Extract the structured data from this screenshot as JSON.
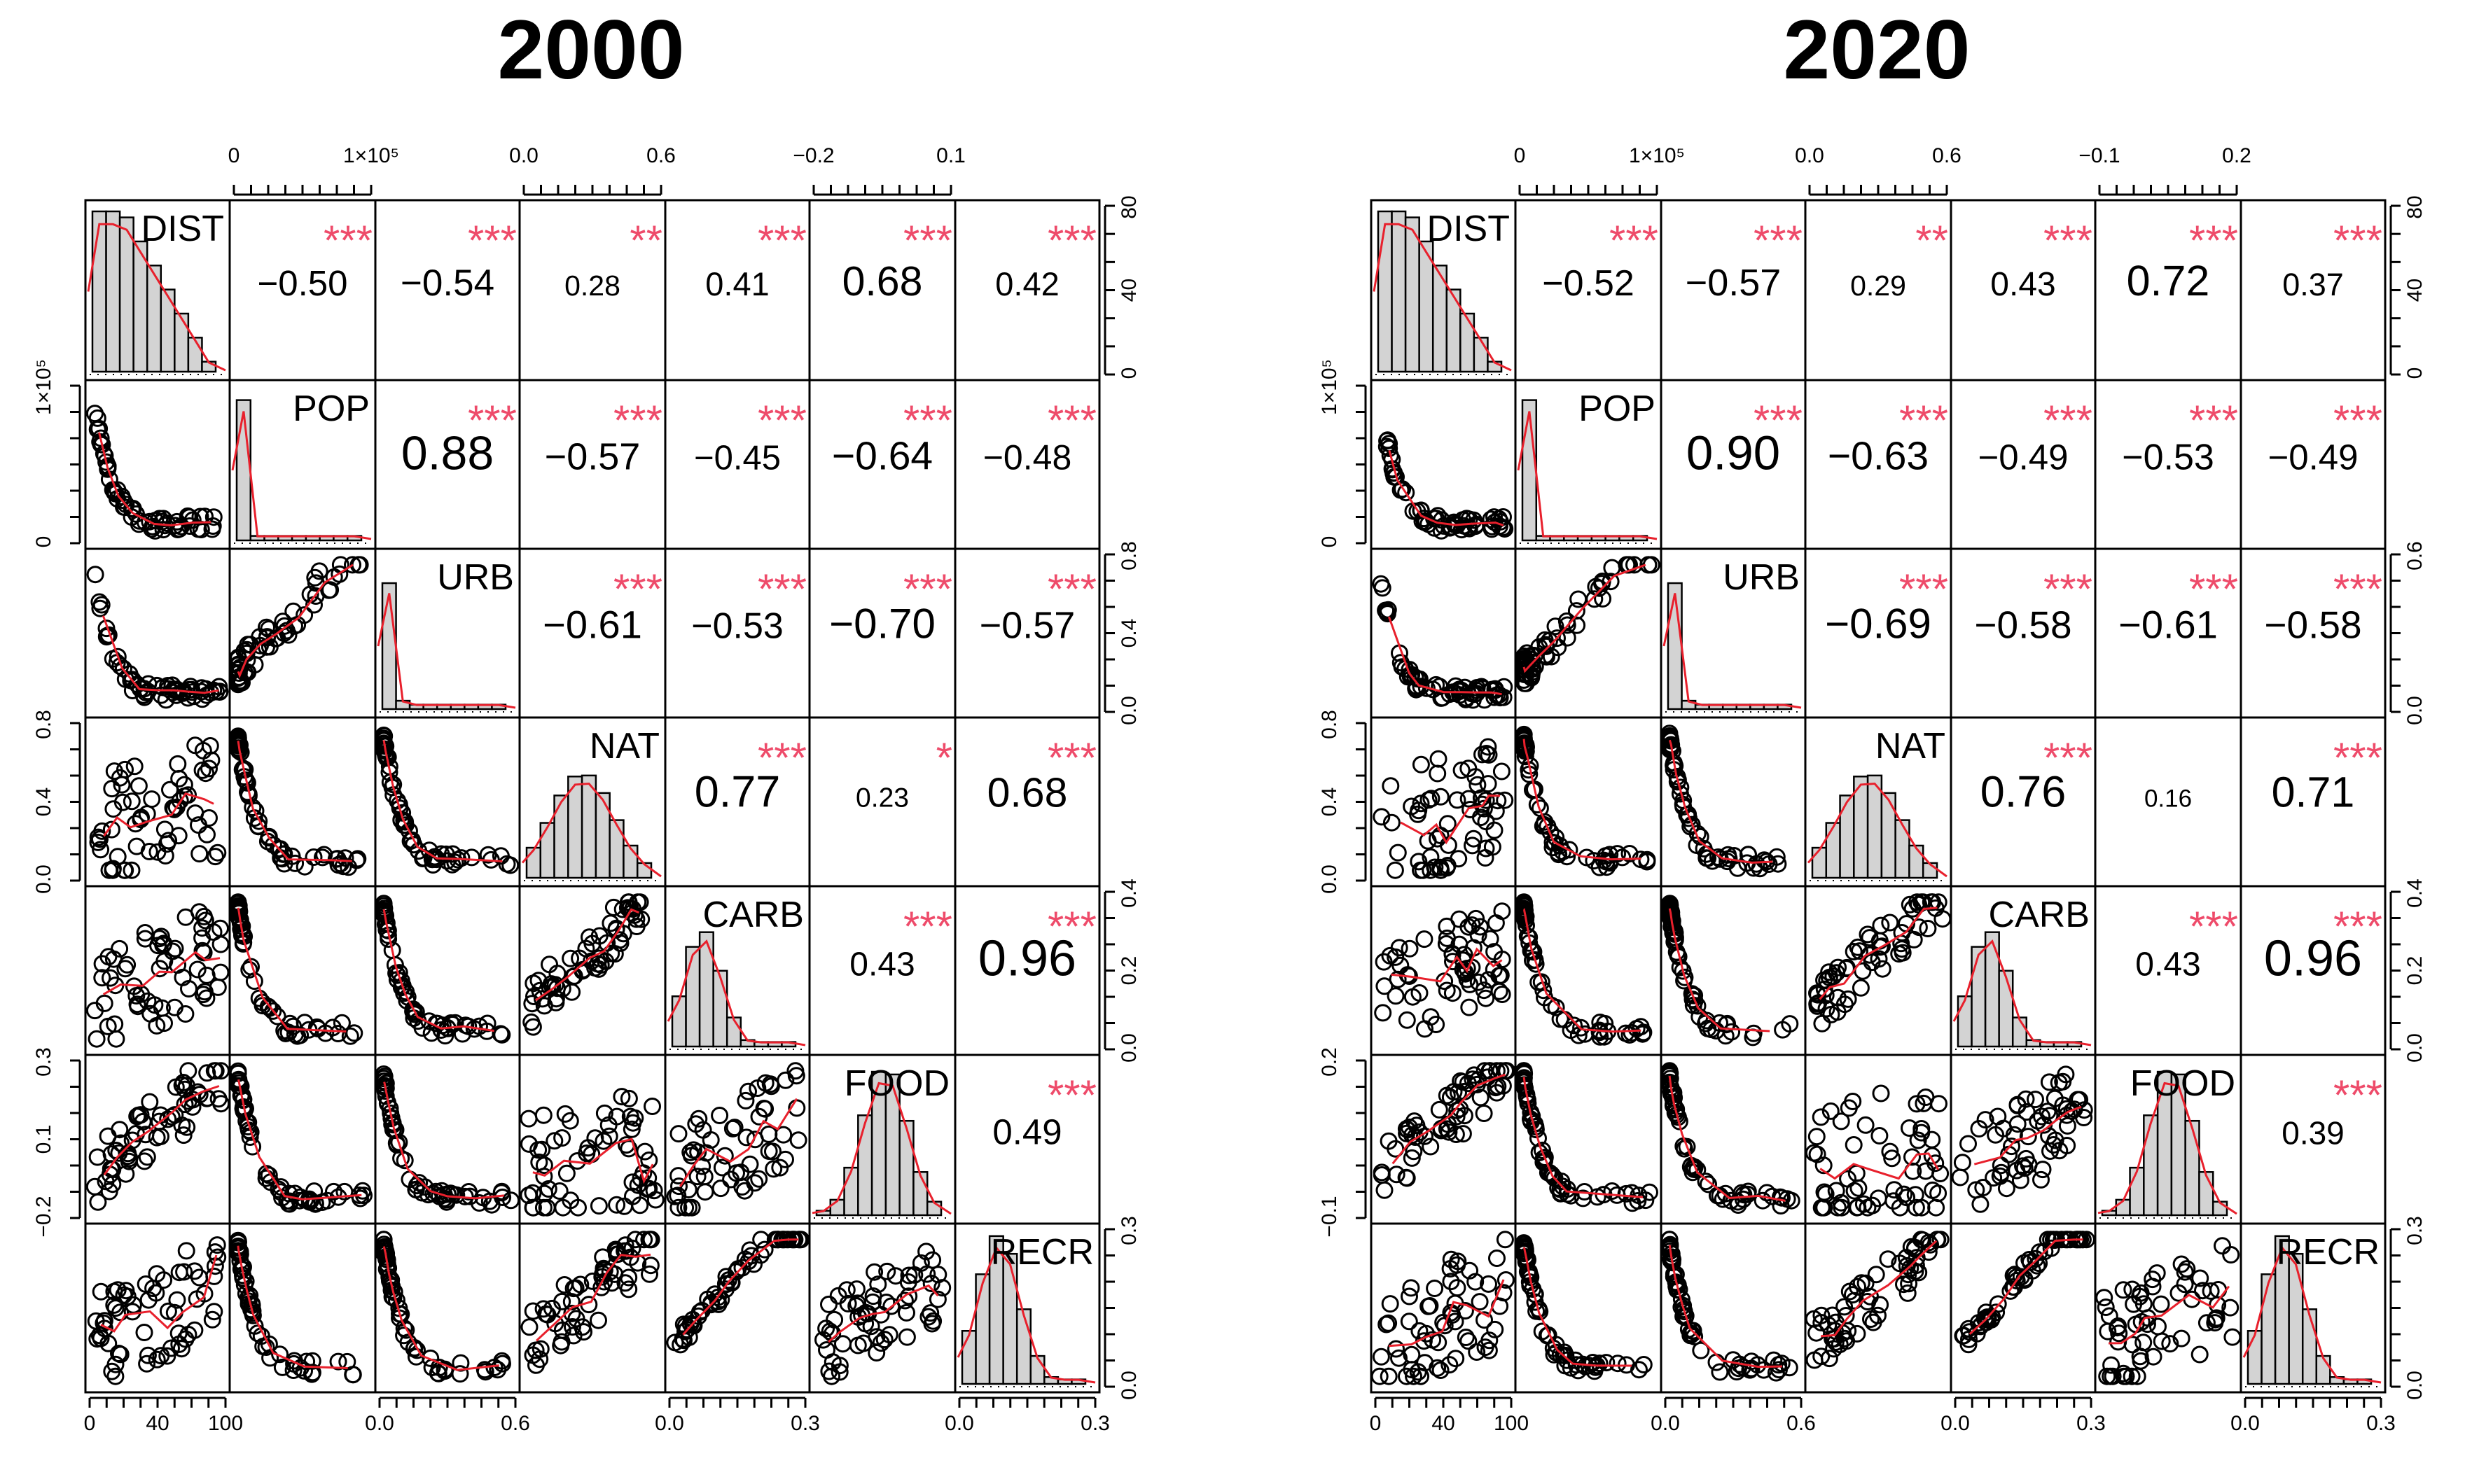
{
  "variables": [
    "DIST",
    "POP",
    "URB",
    "NAT",
    "CARB",
    "FOOD",
    "RECR"
  ],
  "accent": "#e8202c",
  "star_color": "#ee4b6a",
  "chart_data": [
    {
      "type": "scatter",
      "title": "2000",
      "plot_kind": "scatterplot-matrix",
      "diagonal_labels": [
        "DIST",
        "POP",
        "URB",
        "NAT",
        "CARB",
        "FOOD",
        "RECR"
      ],
      "correlations": {
        "DIST": {
          "POP": "−0.50",
          "URB": "−0.54",
          "NAT": "0.28",
          "CARB": "0.41",
          "FOOD": "0.68",
          "RECR": "0.42"
        },
        "POP": {
          "URB": "0.88",
          "NAT": "−0.57",
          "CARB": "−0.45",
          "FOOD": "−0.64",
          "RECR": "−0.48"
        },
        "URB": {
          "NAT": "−0.61",
          "CARB": "−0.53",
          "FOOD": "−0.70",
          "RECR": "−0.57"
        },
        "NAT": {
          "CARB": "0.77",
          "FOOD": "0.23",
          "RECR": "0.68"
        },
        "CARB": {
          "FOOD": "0.43",
          "RECR": "0.96"
        },
        "FOOD": {
          "RECR": "0.49"
        }
      },
      "significance": {
        "DIST": {
          "POP": "***",
          "URB": "***",
          "NAT": "**",
          "CARB": "***",
          "FOOD": "***",
          "RECR": "***"
        },
        "POP": {
          "URB": "***",
          "NAT": "***",
          "CARB": "***",
          "FOOD": "***",
          "RECR": "***"
        },
        "URB": {
          "NAT": "***",
          "CARB": "***",
          "FOOD": "***",
          "RECR": "***"
        },
        "NAT": {
          "CARB": "***",
          "FOOD": "*",
          "RECR": "***"
        },
        "CARB": {
          "FOOD": "***",
          "RECR": "***"
        },
        "FOOD": {
          "RECR": "***"
        }
      },
      "axes": {
        "top_POP": [
          "0",
          "1×10⁵"
        ],
        "top_NAT": [
          "0.0",
          "0.6"
        ],
        "top_FOOD": [
          "−0.2",
          "0.1"
        ],
        "right_DIST": [
          "0",
          "40",
          "80"
        ],
        "right_URB": [
          "0.0",
          "0.4",
          "0.8"
        ],
        "right_CARB": [
          "0.0",
          "0.2",
          "0.4"
        ],
        "right_RECR": [
          "0.0",
          "0.3"
        ],
        "left_POP": [
          "0",
          "1×10⁵"
        ],
        "left_NAT": [
          "0.0",
          "0.4",
          "0.8"
        ],
        "left_FOOD": [
          "−0.2",
          "0.1",
          "0.3"
        ],
        "bottom_DIST": [
          "0",
          "40",
          "100"
        ],
        "bottom_URB": [
          "0.0",
          "0.6"
        ],
        "bottom_CARB": [
          "0.0",
          "0.3"
        ],
        "bottom_RECR": [
          "0.0",
          "0.3"
        ]
      }
    },
    {
      "type": "scatter",
      "title": "2020",
      "plot_kind": "scatterplot-matrix",
      "diagonal_labels": [
        "DIST",
        "POP",
        "URB",
        "NAT",
        "CARB",
        "FOOD",
        "RECR"
      ],
      "correlations": {
        "DIST": {
          "POP": "−0.52",
          "URB": "−0.57",
          "NAT": "0.29",
          "CARB": "0.43",
          "FOOD": "0.72",
          "RECR": "0.37"
        },
        "POP": {
          "URB": "0.90",
          "NAT": "−0.63",
          "CARB": "−0.49",
          "FOOD": "−0.53",
          "RECR": "−0.49"
        },
        "URB": {
          "NAT": "−0.69",
          "CARB": "−0.58",
          "FOOD": "−0.61",
          "RECR": "−0.58"
        },
        "NAT": {
          "CARB": "0.76",
          "FOOD": "0.16",
          "RECR": "0.71"
        },
        "CARB": {
          "FOOD": "0.43",
          "RECR": "0.96"
        },
        "FOOD": {
          "RECR": "0.39"
        }
      },
      "significance": {
        "DIST": {
          "POP": "***",
          "URB": "***",
          "NAT": "**",
          "CARB": "***",
          "FOOD": "***",
          "RECR": "***"
        },
        "POP": {
          "URB": "***",
          "NAT": "***",
          "CARB": "***",
          "FOOD": "***",
          "RECR": "***"
        },
        "URB": {
          "NAT": "***",
          "CARB": "***",
          "FOOD": "***",
          "RECR": "***"
        },
        "NAT": {
          "CARB": "***",
          "FOOD": "",
          "RECR": "***"
        },
        "CARB": {
          "FOOD": "***",
          "RECR": "***"
        },
        "FOOD": {
          "RECR": "***"
        }
      },
      "axes": {
        "top_POP": [
          "0",
          "1×10⁵"
        ],
        "top_NAT": [
          "0.0",
          "0.6"
        ],
        "top_FOOD": [
          "−0.1",
          "0.2"
        ],
        "right_DIST": [
          "0",
          "40",
          "80"
        ],
        "right_URB": [
          "0.0",
          "0.6"
        ],
        "right_CARB": [
          "0.0",
          "0.2",
          "0.4"
        ],
        "right_RECR": [
          "0.0",
          "0.3"
        ],
        "left_POP": [
          "0",
          "1×10⁵"
        ],
        "left_NAT": [
          "0.0",
          "0.4",
          "0.8"
        ],
        "left_FOOD": [
          "−0.1",
          "0.2"
        ],
        "bottom_DIST": [
          "0",
          "40",
          "100"
        ],
        "bottom_URB": [
          "0.0",
          "0.6"
        ],
        "bottom_CARB": [
          "0.0",
          "0.3"
        ],
        "bottom_RECR": [
          "0.0",
          "0.3"
        ]
      }
    }
  ]
}
